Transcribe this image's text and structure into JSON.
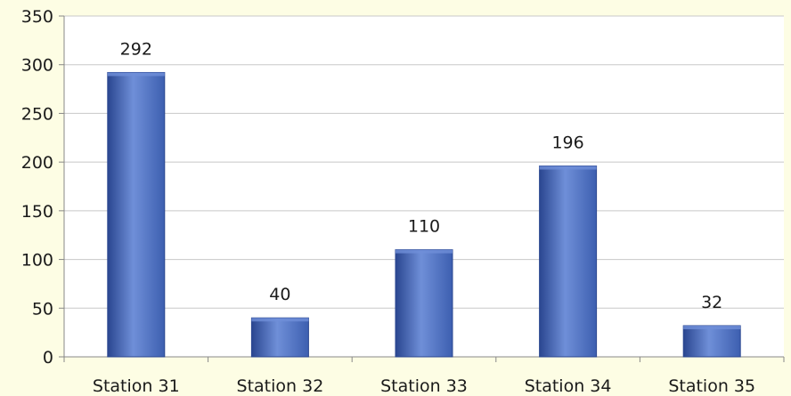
{
  "chart_data": {
    "type": "bar",
    "categories": [
      "Station 31",
      "Station 32",
      "Station 33",
      "Station 34",
      "Station 35"
    ],
    "values": [
      292,
      40,
      110,
      196,
      32
    ],
    "data_labels": [
      "292",
      "40",
      "110",
      "196",
      "32"
    ],
    "yticks": [
      0,
      50,
      100,
      150,
      200,
      250,
      300,
      350
    ],
    "ylim": [
      0,
      350
    ],
    "grid": true,
    "title": "",
    "xlabel": "",
    "ylabel": "",
    "colors": {
      "bar_fill": "#3d5fb0",
      "bar_highlight": "#6f8fd8",
      "bar_edge": "#2a4690",
      "gridline": "#c8c8c8",
      "axis": "#888888",
      "plot_background": "#ffffff",
      "page_background": "#fdfde4"
    }
  }
}
